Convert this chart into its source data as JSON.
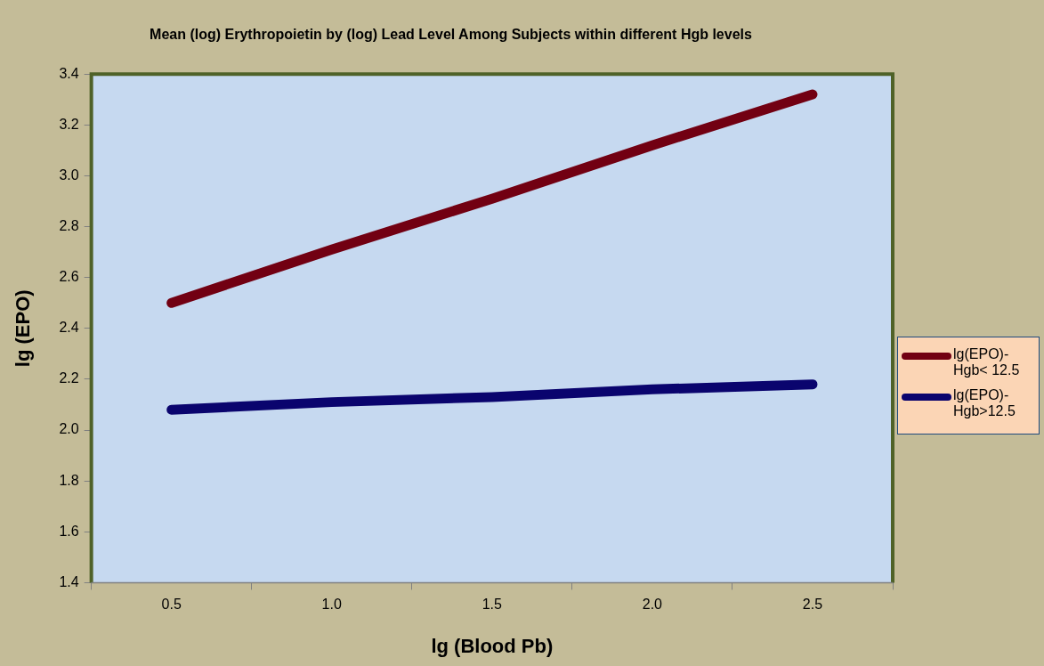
{
  "chart_data": {
    "type": "line",
    "title": "Mean (log) Erythropoietin by (log) Lead Level Among Subjects within different Hgb levels",
    "xlabel": "lg (Blood Pb)",
    "ylabel": "lg (EPO)",
    "categories": [
      "0.5",
      "1.0",
      "1.5",
      "2.0",
      "2.5"
    ],
    "series": [
      {
        "name": "lg(EPO)- Hgb< 12.5",
        "color": "#720012",
        "values": [
          2.5,
          2.71,
          2.91,
          3.12,
          3.32
        ]
      },
      {
        "name": "lg(EPO)- Hgb>12.5",
        "color": "#0a046e",
        "values": [
          2.08,
          2.11,
          2.13,
          2.16,
          2.18
        ]
      }
    ],
    "ylim": [
      1.4,
      3.4
    ],
    "yticks": [
      1.4,
      1.6,
      1.8,
      {
        "value": 2,
        "label": "2.0"
      },
      2.2,
      2.4,
      2.6,
      2.8,
      {
        "value": 3,
        "label": "3.0"
      },
      3.2,
      3.4
    ],
    "grid": false,
    "legend": "right",
    "marker": "none",
    "line_style": "solid"
  }
}
